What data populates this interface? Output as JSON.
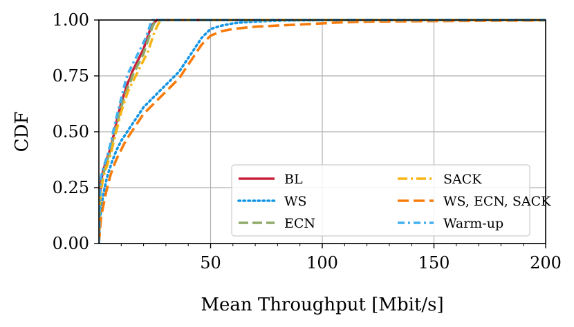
{
  "chart_data": {
    "type": "line",
    "title": "",
    "xlabel": "Mean Throughput [Mbit/s]",
    "ylabel": "CDF",
    "xlim": [
      0,
      200
    ],
    "ylim": [
      0,
      1
    ],
    "xticks": [
      50,
      100,
      150,
      200
    ],
    "xtick_labels": [
      "50",
      "100",
      "150",
      "200"
    ],
    "yticks": [
      0,
      0.25,
      0.5,
      0.75,
      1.0
    ],
    "ytick_labels": [
      "0.00",
      "0.25",
      "0.50",
      "0.75",
      "1.00"
    ],
    "grid": true,
    "legend_position": "lower-right",
    "legend_columns": 2,
    "series": [
      {
        "name": "BL",
        "color": "#c8203c",
        "dash": "solid",
        "x": [
          0,
          0.5,
          1,
          2,
          3,
          4,
          5,
          6,
          7,
          8,
          9,
          10,
          11,
          12,
          13,
          14,
          15,
          16,
          17,
          18,
          19,
          20,
          21,
          22,
          23,
          24,
          25,
          26,
          27,
          28
        ],
        "y": [
          0,
          0.22,
          0.28,
          0.33,
          0.36,
          0.39,
          0.42,
          0.46,
          0.5,
          0.55,
          0.59,
          0.63,
          0.66,
          0.69,
          0.72,
          0.74,
          0.77,
          0.79,
          0.81,
          0.83,
          0.85,
          0.87,
          0.9,
          0.93,
          0.96,
          0.98,
          0.99,
          1.0,
          1.0,
          1.0
        ]
      },
      {
        "name": "WS",
        "color": "#1496e6",
        "dash": "dotted",
        "x": [
          0,
          0.5,
          1,
          2,
          3,
          4,
          5,
          6,
          8,
          10,
          12,
          14,
          16,
          18,
          20,
          22,
          24,
          26,
          28,
          30,
          32,
          34,
          36,
          38,
          40,
          42,
          44,
          46,
          48,
          50,
          55,
          60,
          65,
          70,
          75,
          80,
          90,
          100,
          120,
          150,
          200
        ],
        "y": [
          0,
          0.1,
          0.16,
          0.22,
          0.27,
          0.31,
          0.34,
          0.37,
          0.42,
          0.46,
          0.49,
          0.52,
          0.55,
          0.58,
          0.61,
          0.63,
          0.65,
          0.67,
          0.69,
          0.71,
          0.73,
          0.75,
          0.77,
          0.8,
          0.83,
          0.86,
          0.89,
          0.92,
          0.94,
          0.96,
          0.975,
          0.985,
          0.99,
          0.993,
          0.995,
          0.997,
          0.998,
          0.999,
          1.0,
          1.0,
          1.0
        ]
      },
      {
        "name": "ECN",
        "color": "#8faa68",
        "dash": "dashed",
        "x": [
          0,
          0.5,
          1,
          2,
          3,
          4,
          5,
          6,
          7,
          8,
          9,
          10,
          11,
          12,
          13,
          14,
          15,
          16,
          17,
          18,
          19,
          20,
          21,
          22,
          23,
          24,
          25,
          26,
          27,
          28
        ],
        "y": [
          0,
          0.2,
          0.26,
          0.31,
          0.35,
          0.38,
          0.41,
          0.45,
          0.49,
          0.53,
          0.57,
          0.61,
          0.64,
          0.67,
          0.7,
          0.72,
          0.75,
          0.77,
          0.79,
          0.81,
          0.83,
          0.85,
          0.88,
          0.91,
          0.94,
          0.97,
          0.99,
          1.0,
          1.0,
          1.0
        ]
      },
      {
        "name": "SACK",
        "color": "#f8b414",
        "dash": "dashdot",
        "x": [
          0,
          0.5,
          1,
          2,
          3,
          4,
          5,
          6,
          7,
          8,
          9,
          10,
          11,
          12,
          13,
          14,
          15,
          16,
          17,
          18,
          19,
          20,
          21,
          22,
          23,
          24,
          25,
          26,
          27,
          28,
          29,
          30
        ],
        "y": [
          0,
          0.18,
          0.24,
          0.3,
          0.33,
          0.36,
          0.39,
          0.43,
          0.47,
          0.51,
          0.55,
          0.59,
          0.62,
          0.65,
          0.68,
          0.7,
          0.72,
          0.74,
          0.76,
          0.78,
          0.8,
          0.82,
          0.84,
          0.86,
          0.89,
          0.92,
          0.95,
          0.97,
          0.99,
          1.0,
          1.0,
          1.0
        ]
      },
      {
        "name": "WS, ECN, SACK",
        "color": "#f87c0c",
        "dash": "longdash",
        "x": [
          0,
          0.5,
          1,
          2,
          3,
          4,
          5,
          6,
          8,
          10,
          12,
          14,
          16,
          18,
          20,
          22,
          24,
          26,
          28,
          30,
          32,
          34,
          36,
          38,
          40,
          42,
          44,
          46,
          48,
          50,
          55,
          60,
          70,
          80,
          90,
          100,
          110,
          120,
          150,
          200
        ],
        "y": [
          0,
          0.06,
          0.12,
          0.17,
          0.22,
          0.26,
          0.3,
          0.33,
          0.38,
          0.42,
          0.46,
          0.49,
          0.52,
          0.55,
          0.58,
          0.6,
          0.62,
          0.64,
          0.66,
          0.68,
          0.7,
          0.72,
          0.74,
          0.77,
          0.8,
          0.83,
          0.86,
          0.89,
          0.91,
          0.93,
          0.95,
          0.96,
          0.97,
          0.975,
          0.98,
          0.985,
          0.99,
          0.993,
          0.995,
          0.998
        ]
      },
      {
        "name": "Warm-up",
        "color": "#40b0f0",
        "dash": "dashdot2",
        "x": [
          0,
          0.5,
          1,
          2,
          3,
          4,
          5,
          6,
          7,
          8,
          9,
          10,
          11,
          12,
          13,
          14,
          15,
          16,
          17,
          18,
          19,
          20,
          21,
          22,
          23,
          24,
          25,
          26,
          27
        ],
        "y": [
          0,
          0.25,
          0.3,
          0.34,
          0.37,
          0.4,
          0.44,
          0.48,
          0.53,
          0.57,
          0.61,
          0.65,
          0.69,
          0.73,
          0.76,
          0.78,
          0.8,
          0.82,
          0.84,
          0.86,
          0.88,
          0.9,
          0.92,
          0.95,
          0.98,
          1.0,
          1.0,
          1.0,
          1.0
        ]
      }
    ]
  }
}
